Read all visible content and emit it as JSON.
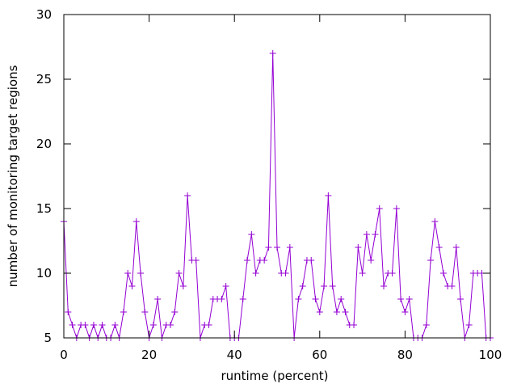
{
  "chart_data": {
    "type": "line",
    "title": "",
    "xlabel": "runtime (percent)",
    "ylabel": "number of monitoring target regions",
    "xlim": [
      0,
      100
    ],
    "ylim": [
      5,
      30
    ],
    "xticks": [
      0,
      20,
      40,
      60,
      80,
      100
    ],
    "yticks": [
      5,
      10,
      15,
      20,
      25,
      30
    ],
    "grid": false,
    "legend": "none",
    "colors": {
      "series": "#9400d3",
      "axis": "#000000"
    },
    "marker": "plus",
    "series": [
      {
        "x": [
          0,
          1,
          2,
          3,
          4,
          5,
          6,
          7,
          8,
          9,
          10,
          11,
          12,
          13,
          14,
          15,
          16,
          17,
          18,
          19,
          20,
          21,
          22,
          23,
          24,
          25,
          26,
          27,
          28,
          29,
          30,
          31,
          32,
          33,
          34,
          35,
          36,
          37,
          38,
          39,
          40,
          41,
          42,
          43,
          44,
          45,
          46,
          47,
          48,
          49,
          50,
          51,
          52,
          53,
          54,
          55,
          56,
          57,
          58,
          59,
          60,
          61,
          62,
          63,
          64,
          65,
          66,
          67,
          68,
          69,
          70,
          71,
          72,
          73,
          74,
          75,
          76,
          77,
          78,
          79,
          80,
          81,
          82,
          83,
          84,
          85,
          86,
          87,
          88,
          89,
          90,
          91,
          92,
          93,
          94,
          95,
          96,
          97,
          98,
          99,
          100
        ],
        "y": [
          14,
          7,
          6,
          5,
          6,
          6,
          5,
          6,
          5,
          6,
          5,
          5,
          6,
          5,
          7,
          10,
          9,
          14,
          10,
          7,
          5,
          6,
          8,
          5,
          6,
          6,
          7,
          10,
          9,
          16,
          11,
          11,
          5,
          6,
          6,
          8,
          8,
          8,
          9,
          5,
          5,
          5,
          8,
          11,
          13,
          10,
          11,
          11,
          12,
          27,
          12,
          10,
          10,
          12,
          5,
          8,
          9,
          11,
          11,
          8,
          7,
          9,
          16,
          9,
          7,
          8,
          7,
          6,
          6,
          12,
          10,
          13,
          11,
          13,
          15,
          9,
          10,
          10,
          15,
          8,
          7,
          8,
          5,
          5,
          5,
          6,
          11,
          14,
          12,
          10,
          9,
          9,
          12,
          8,
          5,
          6,
          10,
          10,
          10,
          5,
          5
        ]
      }
    ]
  }
}
